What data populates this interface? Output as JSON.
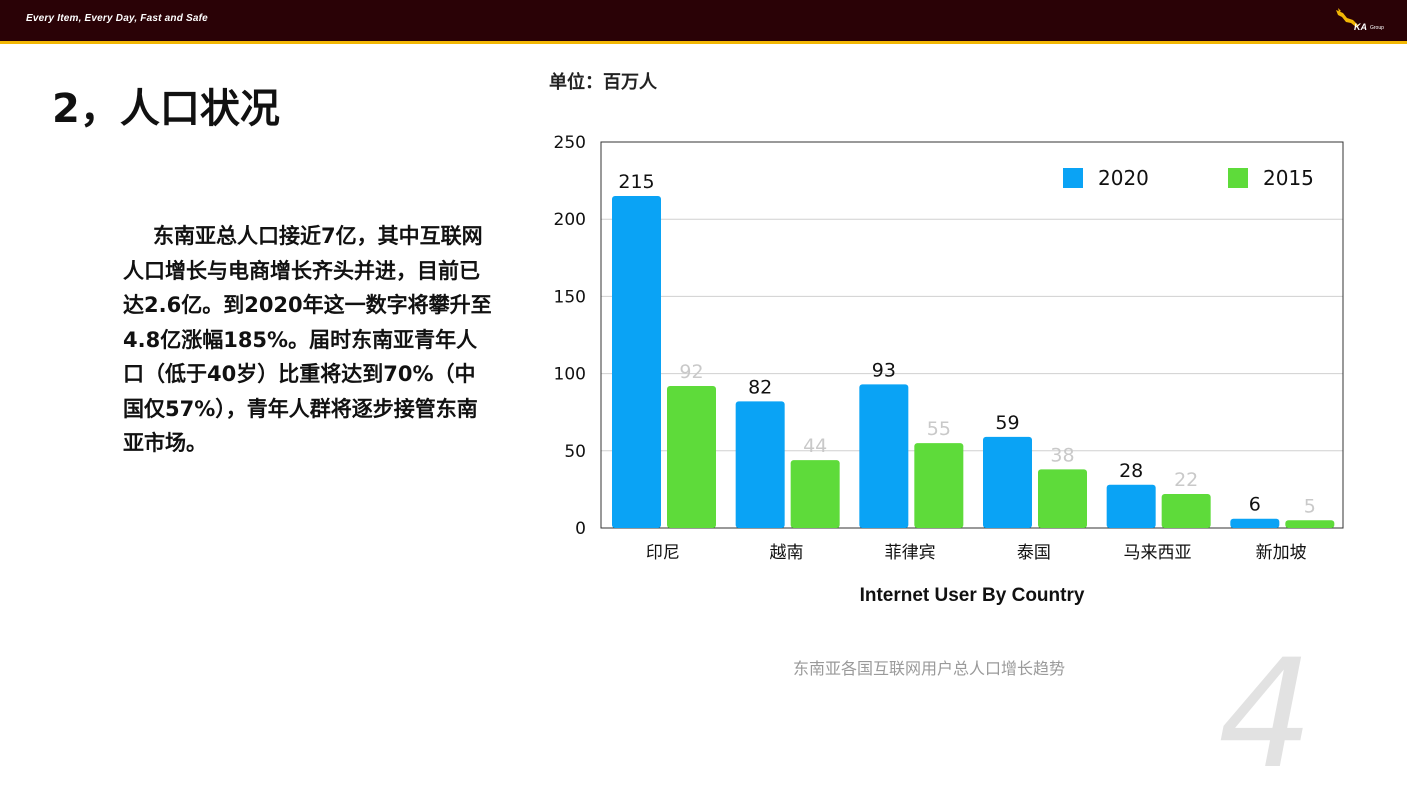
{
  "header": {
    "tagline": "Every Item, Every Day, Fast and Safe",
    "logo_text": "KA",
    "logo_sub": "Group",
    "background_color": "#2a0206",
    "accent_color": "#f2b705"
  },
  "slide": {
    "title": "2，人口状况",
    "paragraph": "东南亚总人口接近7亿，其中互联网人口增长与电商增长齐头并进，目前已达2.6亿。到2020年这一数字将攀升至4.8亿涨幅185%。届时东南亚青年人口（低于40岁）比重将达到70%（中国仅57%），青年人群将逐步接管东南亚市场。",
    "unit_label": "单位：百万人",
    "caption": "东南亚各国互联网用户总人口增长趋势",
    "page_number": "4"
  },
  "chart_data": {
    "type": "bar",
    "title": "",
    "xlabel": "Internet User By Country",
    "ylabel": "",
    "categories": [
      "印尼",
      "越南",
      "菲律宾",
      "泰国",
      "马来西亚",
      "新加坡"
    ],
    "series": [
      {
        "name": "2020",
        "values": [
          215,
          82,
          93,
          59,
          28,
          6
        ],
        "color": "#0aa3f5",
        "label_color": "#111111"
      },
      {
        "name": "2015",
        "values": [
          92,
          44,
          55,
          38,
          22,
          5
        ],
        "color": "#5edb3a",
        "label_color": "#c9c9c9"
      }
    ],
    "ylim": [
      0,
      250
    ],
    "yticks": [
      0,
      50,
      100,
      150,
      200,
      250
    ],
    "grid": true,
    "legend_position": "top-right"
  }
}
